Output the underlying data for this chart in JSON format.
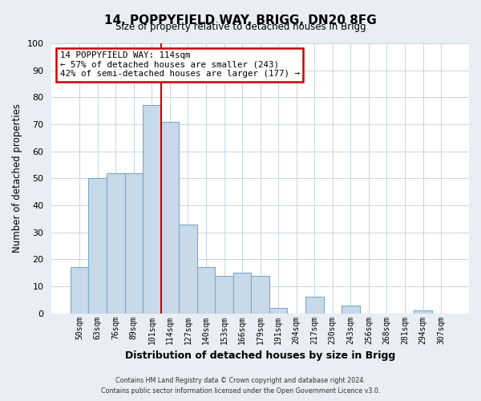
{
  "title": "14, POPPYFIELD WAY, BRIGG, DN20 8FG",
  "subtitle": "Size of property relative to detached houses in Brigg",
  "xlabel": "Distribution of detached houses by size in Brigg",
  "ylabel": "Number of detached properties",
  "bar_labels": [
    "50sqm",
    "63sqm",
    "76sqm",
    "89sqm",
    "101sqm",
    "114sqm",
    "127sqm",
    "140sqm",
    "153sqm",
    "166sqm",
    "179sqm",
    "191sqm",
    "204sqm",
    "217sqm",
    "230sqm",
    "243sqm",
    "256sqm",
    "268sqm",
    "281sqm",
    "294sqm",
    "307sqm"
  ],
  "bar_values": [
    17,
    50,
    52,
    52,
    77,
    71,
    33,
    17,
    14,
    15,
    14,
    2,
    0,
    6,
    0,
    3,
    0,
    0,
    0,
    1,
    0
  ],
  "bar_color": "#c8d9ea",
  "bar_edge_color": "#7aaac8",
  "ylim": [
    0,
    100
  ],
  "vline_index": 5,
  "vline_color": "#cc0000",
  "annotation_line1": "14 POPPYFIELD WAY: 114sqm",
  "annotation_line2": "← 57% of detached houses are smaller (243)",
  "annotation_line3": "42% of semi-detached houses are larger (177) →",
  "annotation_box_color": "#ffffff",
  "annotation_box_edge": "#cc0000",
  "footer_line1": "Contains HM Land Registry data © Crown copyright and database right 2024.",
  "footer_line2": "Contains public sector information licensed under the Open Government Licence v3.0.",
  "bg_color": "#e8eef4",
  "plot_bg_color": "#ffffff",
  "grid_color": "#c8d4de"
}
